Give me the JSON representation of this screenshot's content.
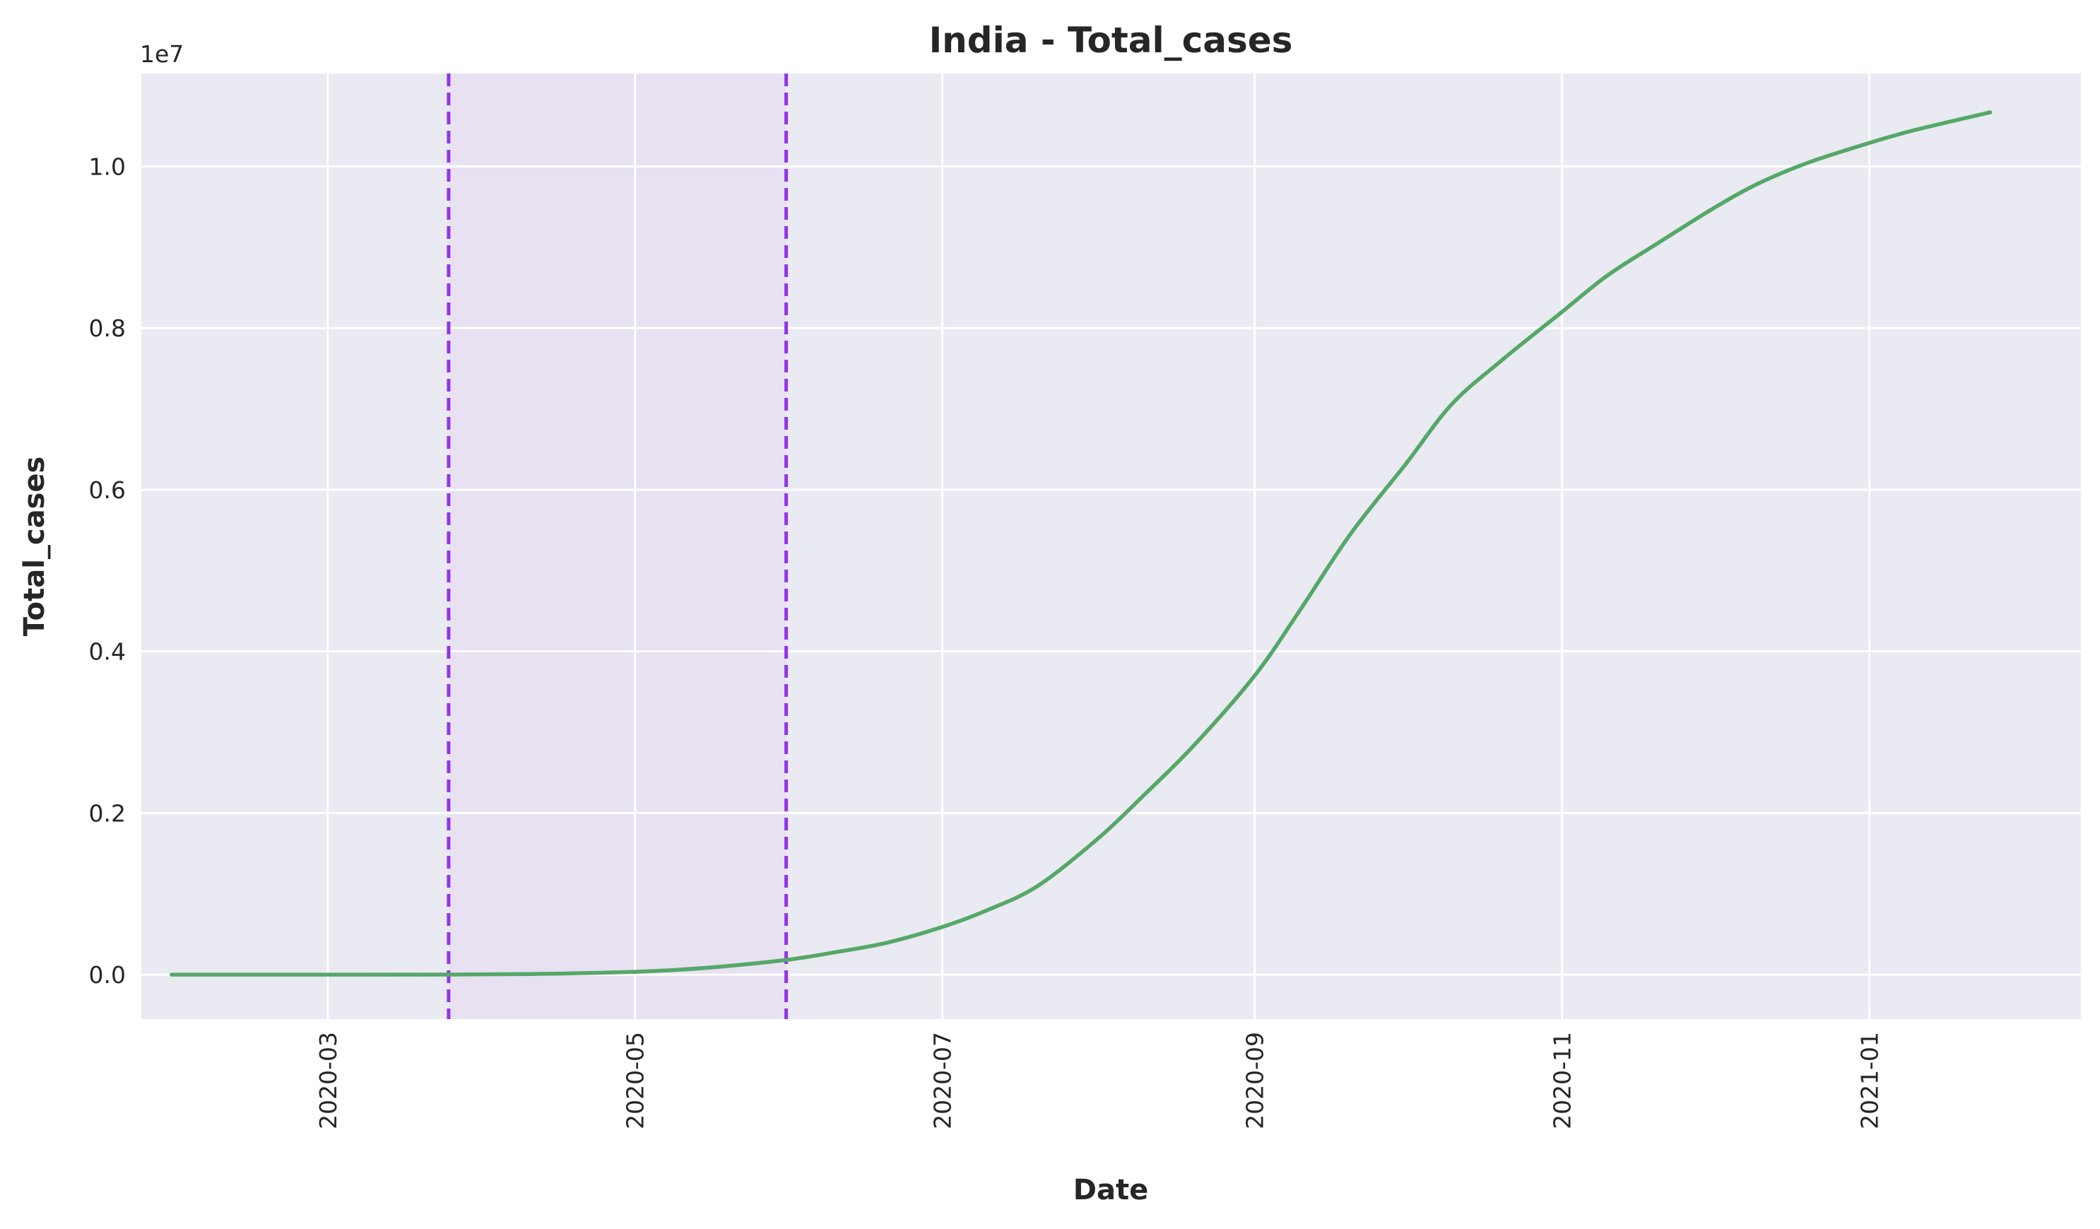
{
  "chart_data": {
    "type": "line",
    "title": "India - Total_cases",
    "xlabel": "Date",
    "ylabel": "Total_cases",
    "y_offset_label": "1e7",
    "x_ticks": [
      "2020-03",
      "2020-05",
      "2020-07",
      "2020-09",
      "2020-11",
      "2021-01"
    ],
    "y_ticks": [
      "0.0",
      "0.2",
      "0.4",
      "0.6",
      "0.8",
      "1.0"
    ],
    "y_tick_values": [
      0,
      2000000,
      4000000,
      6000000,
      8000000,
      10000000
    ],
    "xlim": [
      "2020-01-24",
      "2021-02-12"
    ],
    "ylim": [
      -550000,
      11150000
    ],
    "grid": true,
    "background": "#eaeaf2",
    "line_color": "#55a868",
    "lockdown_color": "#9334e6",
    "lockdown_fill": "#e7e1f2",
    "lockdown": {
      "start": "2020-03-25",
      "end": "2020-05-31"
    },
    "series": [
      {
        "x": [
          "2020-01-30",
          "2020-03-01",
          "2020-03-25",
          "2020-04-10",
          "2020-04-20",
          "2020-05-01",
          "2020-05-10",
          "2020-05-20",
          "2020-06-01",
          "2020-06-10",
          "2020-06-20",
          "2020-07-01",
          "2020-07-10",
          "2020-07-20",
          "2020-08-01",
          "2020-08-10",
          "2020-08-20",
          "2020-09-01",
          "2020-09-10",
          "2020-09-20",
          "2020-10-01",
          "2020-10-10",
          "2020-10-20",
          "2020-11-01",
          "2020-11-10",
          "2020-11-20",
          "2020-12-01",
          "2020-12-10",
          "2020-12-20",
          "2021-01-01",
          "2021-01-10",
          "2021-01-25"
        ],
        "y": [
          0,
          0,
          600,
          7500,
          18000,
          35000,
          62000,
          110000,
          190000,
          280000,
          395000,
          590000,
          800000,
          1100000,
          1690000,
          2220000,
          2840000,
          3700000,
          4510000,
          5450000,
          6320000,
          7050000,
          7600000,
          8200000,
          8650000,
          9050000,
          9480000,
          9790000,
          10050000,
          10290000,
          10450000,
          10670000
        ]
      }
    ]
  }
}
